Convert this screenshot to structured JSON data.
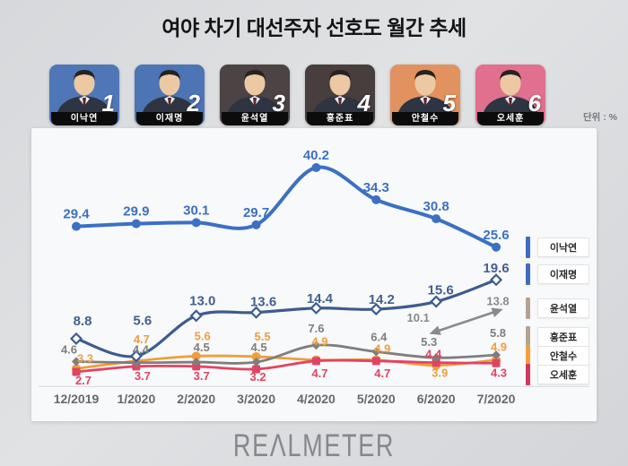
{
  "title": "여야 차기 대선주자 선호도 월간 추세",
  "unit_label": "단위 : %",
  "logo_text": "REΛLMETER",
  "candidates": [
    {
      "rank": "1",
      "name": "이낙연",
      "color": "#4f77b7"
    },
    {
      "rank": "2",
      "name": "이재명",
      "color": "#4d74b5"
    },
    {
      "rank": "3",
      "name": "윤석열",
      "color": "#4b4344"
    },
    {
      "rank": "4",
      "name": "홍준표",
      "color": "#473e3d"
    },
    {
      "rank": "5",
      "name": "안철수",
      "color": "#e2925f"
    },
    {
      "rank": "6",
      "name": "오세훈",
      "color": "#e0708d"
    }
  ],
  "chart_data": {
    "type": "line",
    "title": "여야 차기 대선주자 선호도 월간 추세",
    "xlabel": "",
    "ylabel": "%",
    "ylim": [
      0,
      45
    ],
    "grid": false,
    "legend_position": "right",
    "categories": [
      "12/2019",
      "1/2020",
      "2/2020",
      "3/2020",
      "4/2020",
      "5/2020",
      "6/2020",
      "7/2020"
    ],
    "series": [
      {
        "name": "이낙연",
        "color": "#3b70c4",
        "legend_color": "#3e6dc0",
        "marker": "circle",
        "width": 4,
        "label_size": 15,
        "values": [
          29.4,
          29.9,
          30.1,
          29.7,
          40.2,
          34.3,
          30.8,
          25.6
        ],
        "label_dx": [
          0,
          0,
          0,
          0,
          0,
          0,
          0,
          0
        ],
        "label_dy": [
          -9,
          -9,
          -9,
          -9,
          -9,
          -9,
          -9,
          -9
        ]
      },
      {
        "name": "이재명",
        "color": "#3d5c8f",
        "legend_color": "#3e6dc0",
        "marker": "diamond-open",
        "width": 3.2,
        "label_size": 15,
        "values": [
          8.8,
          5.6,
          13.0,
          13.6,
          14.4,
          14.2,
          15.6,
          19.6
        ],
        "label_dx": [
          7,
          7,
          7,
          8,
          4,
          6,
          5,
          0
        ],
        "label_dy": [
          -15,
          -35,
          -12,
          -7,
          -6,
          -6,
          -8,
          -8
        ]
      },
      {
        "name": "윤석열",
        "color": "#8a8a8a",
        "legend_color": "#b4a394",
        "marker": "arrow",
        "width": 2.6,
        "label_size": 13,
        "values": [
          null,
          null,
          null,
          null,
          null,
          null,
          10.1,
          13.8
        ],
        "label_dx": [
          0,
          0,
          0,
          0,
          0,
          0,
          -20,
          2
        ],
        "label_dy": [
          0,
          0,
          0,
          0,
          0,
          0,
          -11,
          -7
        ]
      },
      {
        "name": "홍준표",
        "color": "#7e7e7e",
        "legend_color": "#b4a394",
        "marker": "diamond",
        "width": 2.8,
        "label_size": 13,
        "values": [
          4.6,
          4.4,
          4.5,
          4.5,
          7.6,
          6.4,
          5.3,
          5.8
        ],
        "label_dx": [
          -8,
          5,
          6,
          3,
          0,
          3,
          -8,
          2
        ],
        "label_dy": [
          -9,
          -10,
          -12,
          -12,
          -14,
          -12,
          -13,
          -20
        ]
      },
      {
        "name": "안철수",
        "color": "#f09d3c",
        "legend_color": "#f0a03f",
        "marker": "circle",
        "width": 2.8,
        "label_size": 13,
        "values": [
          3.3,
          4.7,
          5.6,
          5.5,
          4.9,
          4.9,
          3.9,
          4.9
        ],
        "label_dx": [
          10,
          6,
          7,
          7,
          4,
          7,
          4,
          3
        ],
        "label_dy": [
          -7,
          -20,
          -18,
          -18,
          -16,
          -8,
          13,
          -10
        ]
      },
      {
        "name": "오세훈",
        "color": "#e04463",
        "legend_color": "#cf3a5e",
        "marker": "square",
        "width": 2.8,
        "label_size": 13,
        "values": [
          2.7,
          3.7,
          3.7,
          3.2,
          4.7,
          4.7,
          4.4,
          4.3
        ],
        "label_dx": [
          8,
          7,
          6,
          2,
          4,
          7,
          -3,
          3
        ],
        "label_dy": [
          14,
          15,
          15,
          13,
          18,
          18,
          -5,
          15
        ]
      }
    ]
  }
}
